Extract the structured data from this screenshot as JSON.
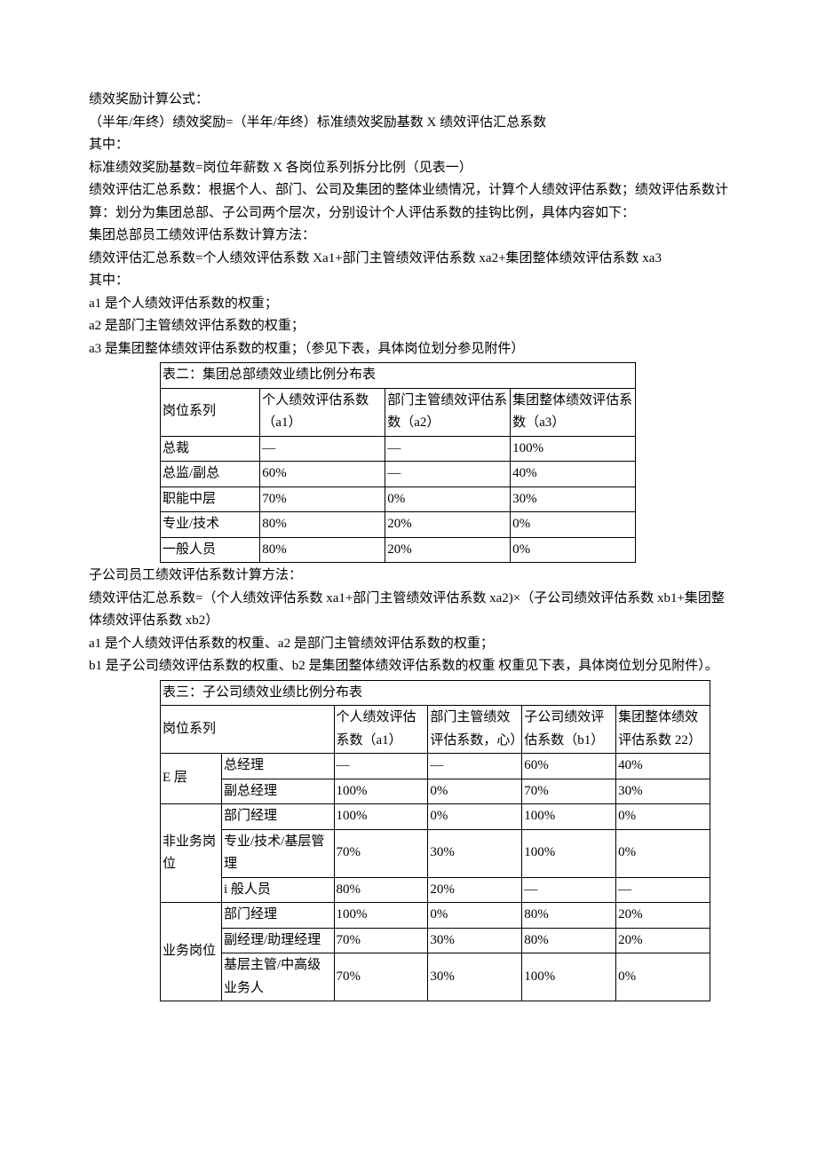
{
  "paras": {
    "p1": "绩效奖励计算公式：",
    "p2": "（半年/年终）绩效奖励=（半年/年终）标准绩效奖励基数 X 绩效评估汇总系数",
    "p3": "其中：",
    "p4": "标准绩效奖励基数=岗位年薪数 X 各岗位系列拆分比例（见表一）",
    "p5": "绩效评估汇总系数：根据个人、部门、公司及集团的整体业绩情况，计算个人绩效评估系数；绩效评估系数计算：划分为集团总部、子公司两个层次，分别设计个人评估系数的挂钩比例，具体内容如下：",
    "p6": "集团总部员工绩效评估系数计算方法：",
    "p7": "绩效评估汇总系数=个人绩效评估系数 Xa1+部门主管绩效评估系数 xa2+集团整体绩效评估系数 xa3",
    "p8": "其中：",
    "p9": "a1 是个人绩效评估系数的权重；",
    "p10": "a2 是部门主管绩效评估系数的权重；",
    "p11": "a3 是集团整体绩效评估系数的权重；（参见下表，具体岗位划分参见附件）",
    "p12": "子公司员工绩效评估系数计算方法：",
    "p13": "绩效评估汇总系数=（个人绩效评估系数 xa1+部门主管绩效评估系数 xa2)×（子公司绩效评估系数 xb1+集团整体绩效评估系数 xb2）",
    "p14": "a1 是个人绩效评估系数的权重、a2 是部门主管绩效评估系数的权重；",
    "p15": "b1 是子公司绩效评估系数的权重、b2 是集团整体绩效评估系数的权重 权重见下表，具体岗位划分见附件）。"
  },
  "table1": {
    "title": "表二：集团总部绩效业绩比例分布表",
    "headers": {
      "h1": "岗位系列",
      "h2": "个人绩效评估系数（a1）",
      "h3": "部门主管绩效评估系数（a2）",
      "h4": "集团整体绩效评估系数（a3）"
    },
    "rows": [
      {
        "c1": "总裁",
        "c2": "—",
        "c3": "—",
        "c4": "100%"
      },
      {
        "c1": "总监/副总",
        "c2": "60%",
        "c3": "—",
        "c4": "40%"
      },
      {
        "c1": "职能中层",
        "c2": "70%",
        "c3": "0%",
        "c4": "30%"
      },
      {
        "c1": "专业/技术",
        "c2": "80%",
        "c3": "20%",
        "c4": "0%"
      },
      {
        "c1": "一般人员",
        "c2": "80%",
        "c3": "20%",
        "c4": "0%"
      }
    ]
  },
  "table2": {
    "title": "表三：子公司绩效业绩比例分布表",
    "headers": {
      "h1": "岗位系列",
      "h2": "个人绩效评估系数（a1）",
      "h3": "部门主管绩效评估系数，心）",
      "h4": "子公司绩效评估系数（b1）",
      "h5": "集团整体绩效评估系数 22）"
    },
    "groups": [
      {
        "cat": "E 层",
        "rows": [
          {
            "role": "总经理",
            "v1": "—",
            "v2": "—",
            "v3": "60%",
            "v4": "40%"
          },
          {
            "role": "副总经理",
            "v1": "100%",
            "v2": "0%",
            "v3": "70%",
            "v4": "30%"
          }
        ]
      },
      {
        "cat": "非业务岗位",
        "rows": [
          {
            "role": "部门经理",
            "v1": "100%",
            "v2": "0%",
            "v3": "100%",
            "v4": "0%"
          },
          {
            "role": "专业/技术/基层管理",
            "v1": "70%",
            "v2": "30%",
            "v3": "100%",
            "v4": "0%"
          },
          {
            "role": "i 般人员",
            "v1": "80%",
            "v2": "20%",
            "v3": "—",
            "v4": "—"
          }
        ]
      },
      {
        "cat": "业务岗位",
        "rows": [
          {
            "role": "部门经理",
            "v1": "100%",
            "v2": "0%",
            "v3": "80%",
            "v4": "20%"
          },
          {
            "role": "副经理/助理经理",
            "v1": "70%",
            "v2": "30%",
            "v3": "80%",
            "v4": "20%"
          },
          {
            "role": "基层主管/中高级业务人",
            "v1": "70%",
            "v2": "30%",
            "v3": "100%",
            "v4": "0%"
          }
        ]
      }
    ]
  }
}
